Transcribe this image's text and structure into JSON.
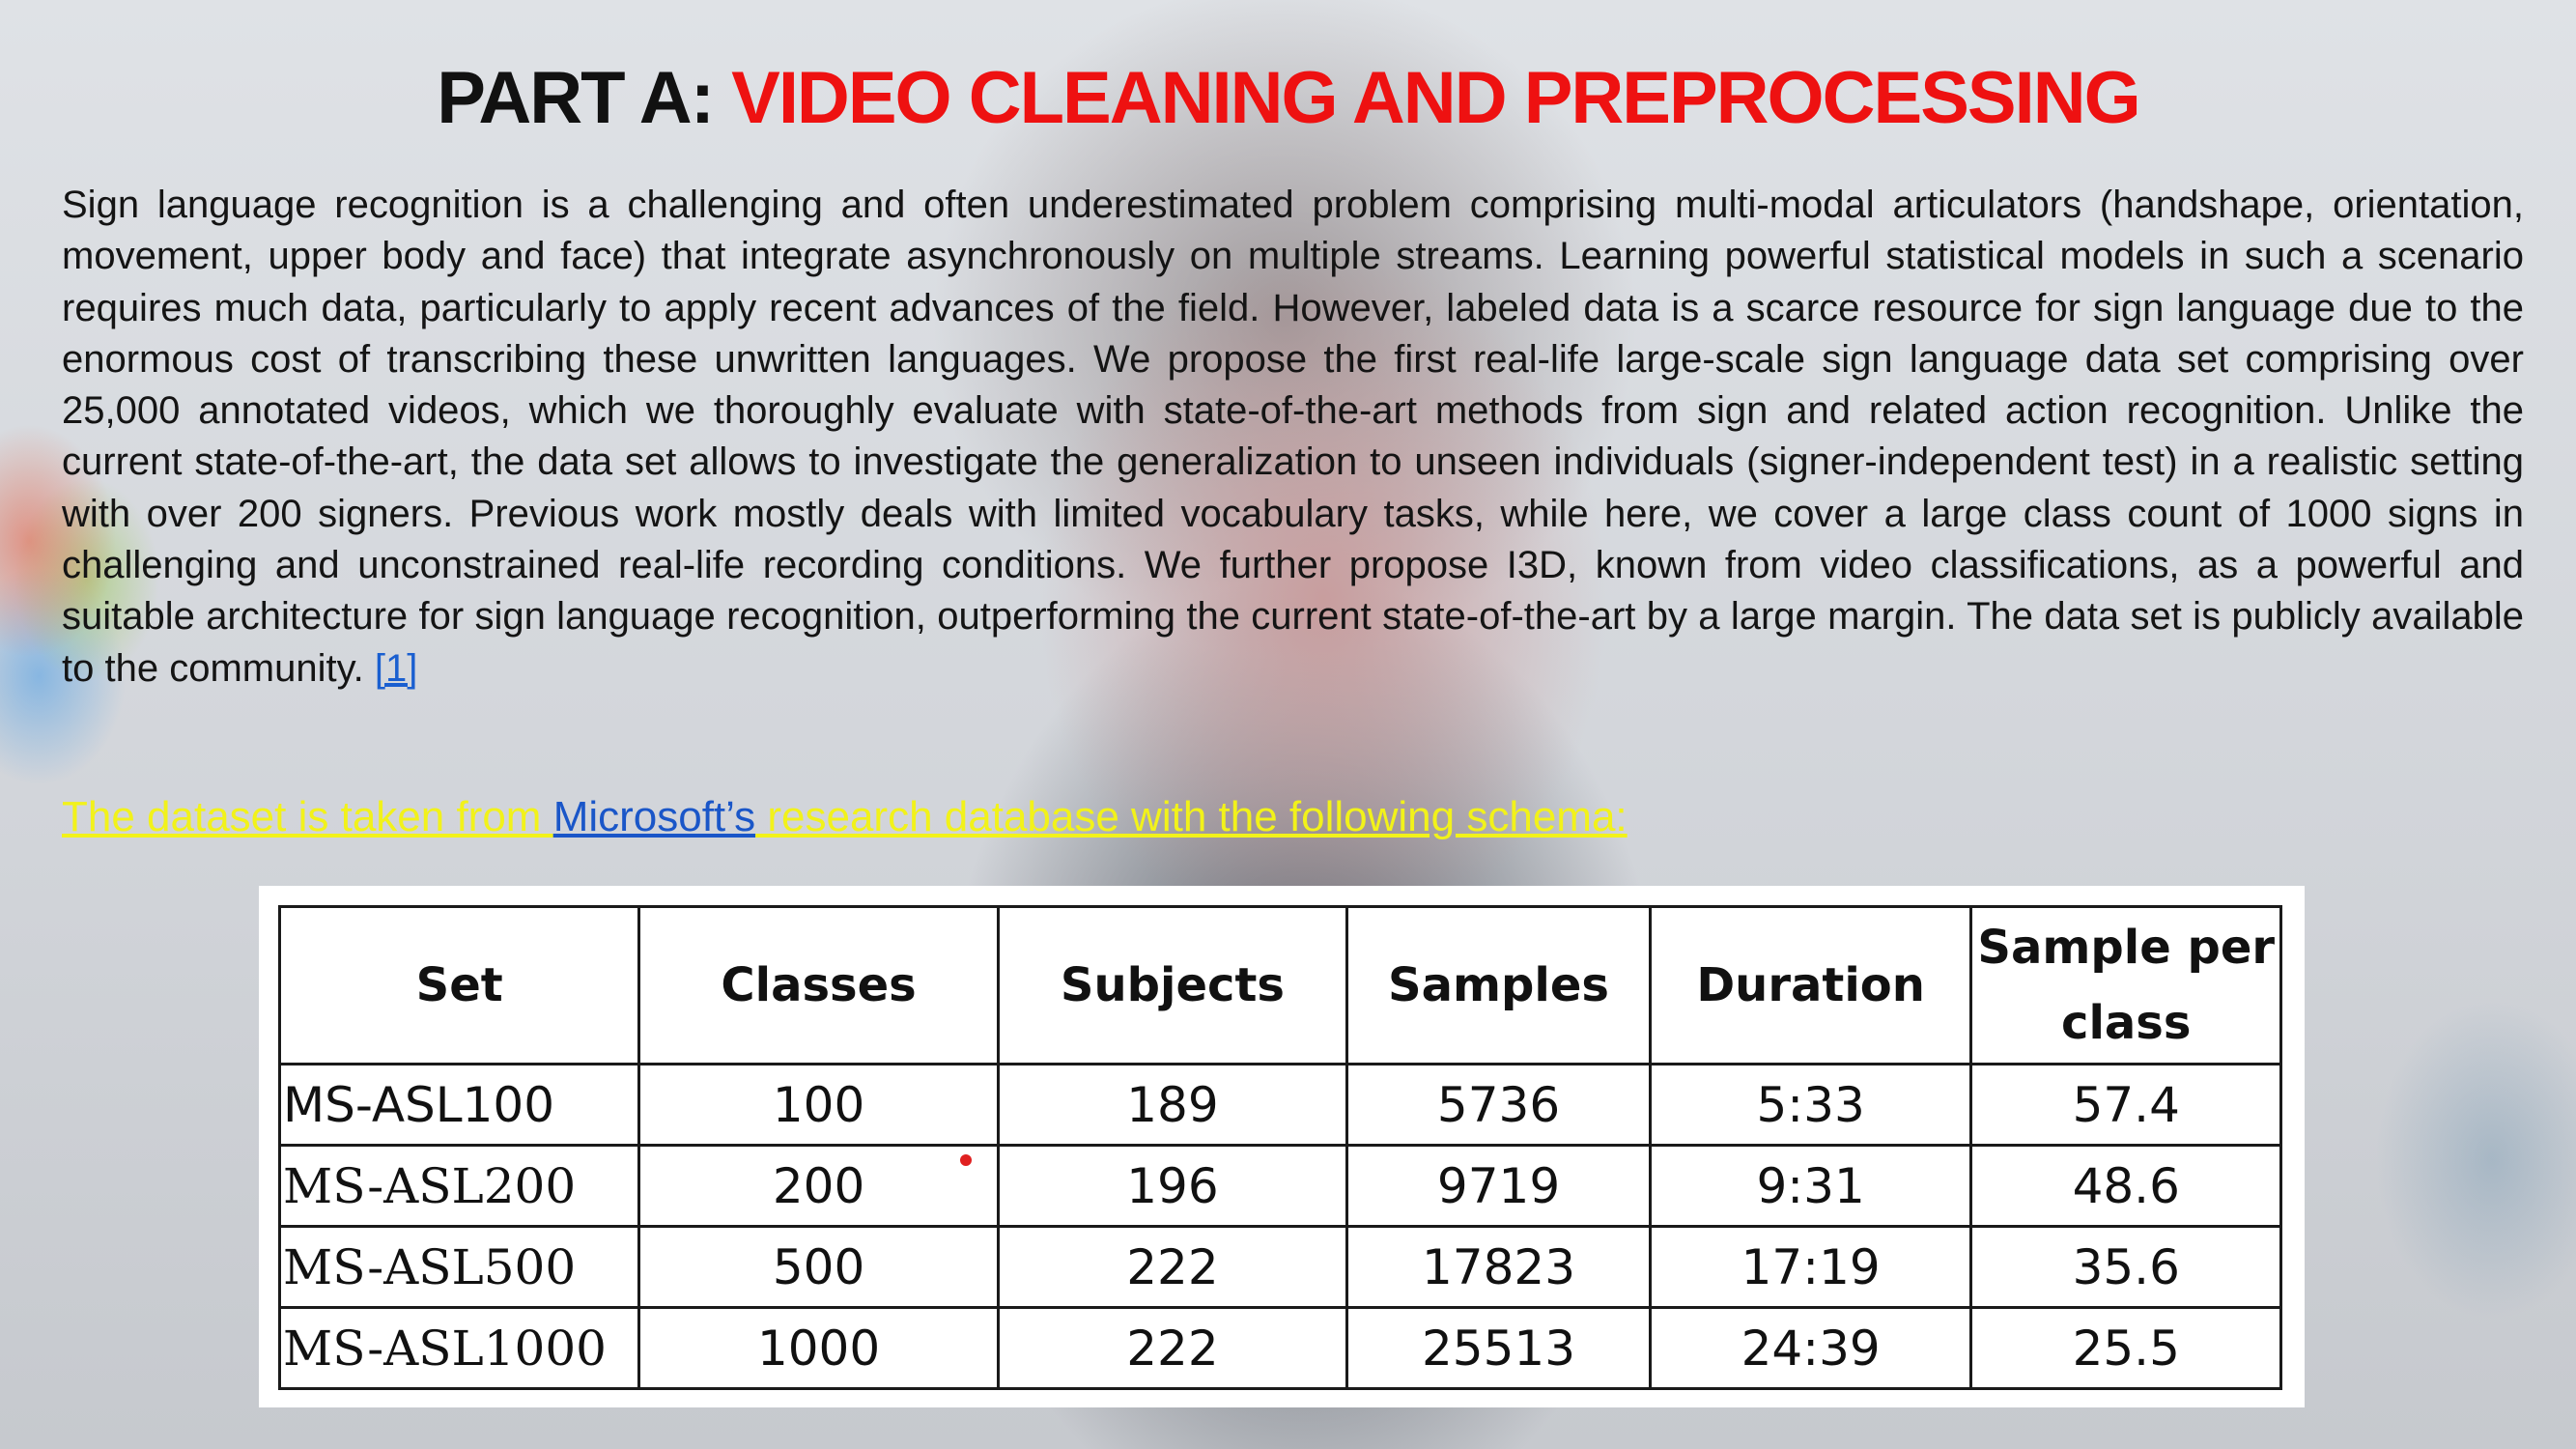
{
  "slide": {
    "title_prefix": "PART A: ",
    "title_accent": "VIDEO CLEANING AND PREPROCESSING",
    "paragraph": "Sign language recognition is a challenging and often underestimated problem comprising multi-modal articulators (handshape, orientation, movement, upper body and face) that integrate asynchronously on multiple streams. Learning powerful statistical models in such a scenario requires much data, particularly to apply recent advances of the field. However, labeled data is a scarce resource for sign language due to the enormous cost of transcribing these unwritten languages. We propose the first real-life large-scale sign language data set comprising over 25,000 annotated videos, which we thoroughly evaluate with state-of-the-art methods from sign and related action recognition. Unlike the current state-of-the-art, the data set allows to investigate the generalization to unseen individuals (signer-independent test) in a realistic setting with over 200 signers. Previous work mostly deals with limited vocabulary tasks, while here, we cover a large class count of 1000 signs in challenging and unconstrained real-life recording conditions. We further propose I3D, known from video classifications, as a powerful and suitable architecture for sign language recognition, outperforming the current state-of-the-art by a large margin. The data set is publicly available to the community.",
    "reference": "[1]",
    "schema_part1": "The dataset is taken from ",
    "schema_link": "Microsoft’s",
    "schema_part2": " research database with the following schema:",
    "colors": {
      "title_accent": "#ee1111",
      "schema_text": "#f2f21a",
      "link": "#1a56c8"
    }
  },
  "table": {
    "headers": [
      "Set",
      "Classes",
      "Subjects",
      "Samples",
      "Duration",
      "Sample per class"
    ],
    "rows": [
      [
        "MS-ASL100",
        "100",
        "189",
        "5736",
        "5:33",
        "57.4"
      ],
      [
        "MS-ASL200",
        "200",
        "196",
        "9719",
        "9:31",
        "48.6"
      ],
      [
        "MS-ASL500",
        "500",
        "222",
        "17823",
        "17:19",
        "35.6"
      ],
      [
        "MS-ASL1000",
        "1000",
        "222",
        "25513",
        "24:39",
        "25.5"
      ]
    ]
  }
}
